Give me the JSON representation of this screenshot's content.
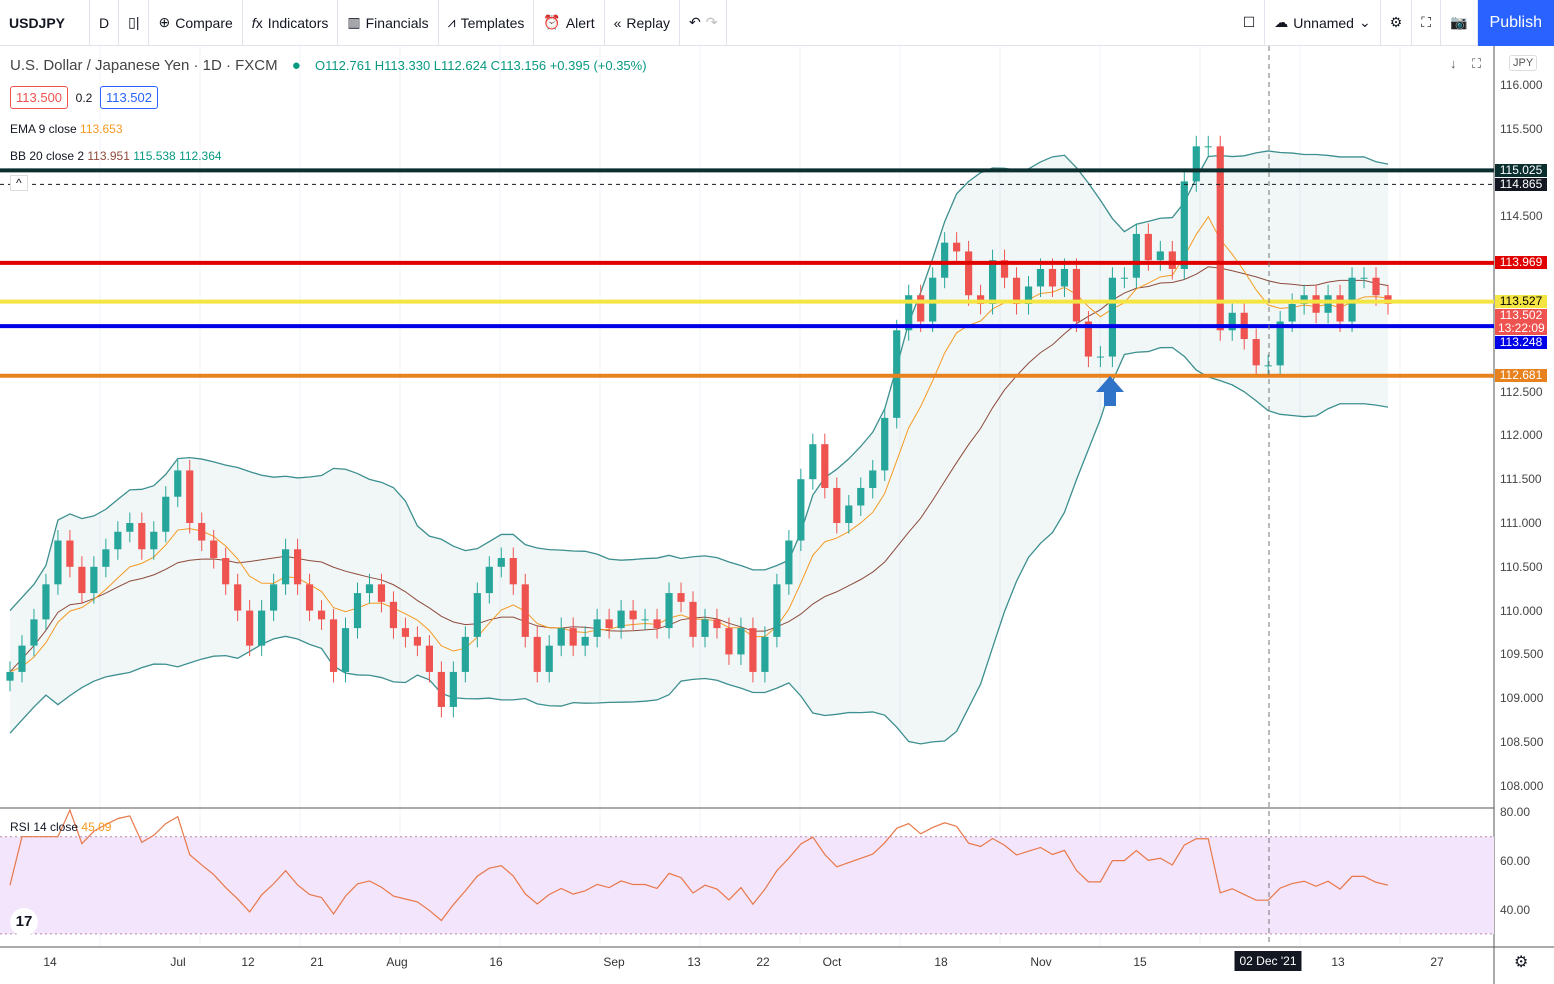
{
  "toolbar": {
    "symbol": "USDJPY",
    "interval": "D",
    "compare": "Compare",
    "indicators": "Indicators",
    "financials": "Financials",
    "templates": "Templates",
    "alert": "Alert",
    "replay": "Replay",
    "layout_name": "Unnamed",
    "publish": "Publish"
  },
  "legend": {
    "title": "U.S. Dollar / Japanese Yen · 1D · FXCM",
    "ohlc": "O112.761 H113.330 L112.624 C113.156 +0.395 (+0.35%)",
    "sell": "113.500",
    "spread": "0.2",
    "buy": "113.502",
    "ema": "EMA 9 close",
    "ema_val": "113.653",
    "bb": "BB 20 close 2",
    "bb_basis": "113.951",
    "bb_upper": "115.538",
    "bb_lower": "112.364",
    "rsi": "RSI 14 close",
    "rsi_val": "45.09",
    "currency": "JPY"
  },
  "chart_data": {
    "type": "candlestick",
    "price_ylim": [
      108.0,
      116.0
    ],
    "price_ticks": [
      "116.000",
      "115.500",
      "114.500",
      "112.500",
      "112.000",
      "111.500",
      "111.000",
      "110.500",
      "110.000",
      "109.500",
      "109.000",
      "108.500",
      "108.000"
    ],
    "rsi_ylim": [
      25,
      85
    ],
    "rsi_ticks": [
      "80.00",
      "60.00",
      "40.00"
    ],
    "rsi_band": [
      30,
      70
    ],
    "x_ticks": [
      "14",
      "Jul",
      "12",
      "21",
      "Aug",
      "16",
      "Sep",
      "13",
      "22",
      "Oct",
      "18",
      "Nov",
      "15",
      "02 Dec '21",
      "13",
      "27"
    ],
    "closes": [
      109.3,
      109.6,
      109.9,
      110.3,
      110.8,
      110.5,
      110.2,
      110.5,
      110.7,
      110.9,
      111.0,
      110.7,
      110.9,
      111.3,
      111.6,
      111.0,
      110.8,
      110.6,
      110.3,
      110.0,
      109.6,
      110.0,
      110.3,
      110.7,
      110.3,
      110.0,
      109.9,
      109.3,
      109.8,
      110.2,
      110.3,
      110.1,
      109.8,
      109.7,
      109.6,
      109.3,
      108.9,
      109.3,
      109.7,
      110.2,
      110.5,
      110.6,
      110.3,
      109.7,
      109.3,
      109.6,
      109.8,
      109.6,
      109.7,
      109.9,
      109.8,
      110.0,
      109.9,
      109.9,
      109.8,
      110.2,
      110.1,
      109.7,
      109.9,
      109.8,
      109.5,
      109.8,
      109.3,
      109.7,
      110.3,
      110.8,
      111.5,
      111.9,
      111.4,
      111.0,
      111.2,
      111.4,
      111.6,
      112.2,
      113.2,
      113.6,
      113.3,
      113.8,
      114.2,
      114.1,
      113.6,
      113.5,
      114.0,
      113.8,
      113.5,
      113.7,
      113.9,
      113.7,
      113.9,
      113.3,
      112.9,
      112.9,
      113.8,
      113.8,
      114.3,
      114.0,
      114.1,
      113.9,
      114.9,
      115.3,
      115.3,
      113.2,
      113.4,
      113.1,
      112.8,
      112.8,
      113.3,
      113.5,
      113.6,
      113.4,
      113.6,
      113.3,
      113.8,
      113.8,
      113.6,
      113.5
    ],
    "levels": [
      {
        "price": 115.025,
        "label": "115.025",
        "color": "#0b2e2e"
      },
      {
        "price": 114.865,
        "label": "114.865",
        "color": "#131722",
        "dashed": true
      },
      {
        "price": 113.969,
        "label": "113.969",
        "color": "#e00000"
      },
      {
        "price": 113.527,
        "label": "113.527",
        "color": "#f5e542"
      },
      {
        "price": 113.248,
        "label": "113.248",
        "color": "#0000e8"
      },
      {
        "price": 112.681,
        "label": "112.681",
        "color": "#e8821e"
      }
    ],
    "last_price": {
      "label": "113.502",
      "countdown": "13:22:09",
      "color": "#ef5350"
    },
    "colors": {
      "up": "#26a69a",
      "down": "#ef5350",
      "ema": "#f59a23",
      "bb_basis": "#8d4b3c",
      "bb_band": "#3d8f8f",
      "rsi": "#e8784a",
      "rsi_fill": "#f3e5fb"
    }
  }
}
